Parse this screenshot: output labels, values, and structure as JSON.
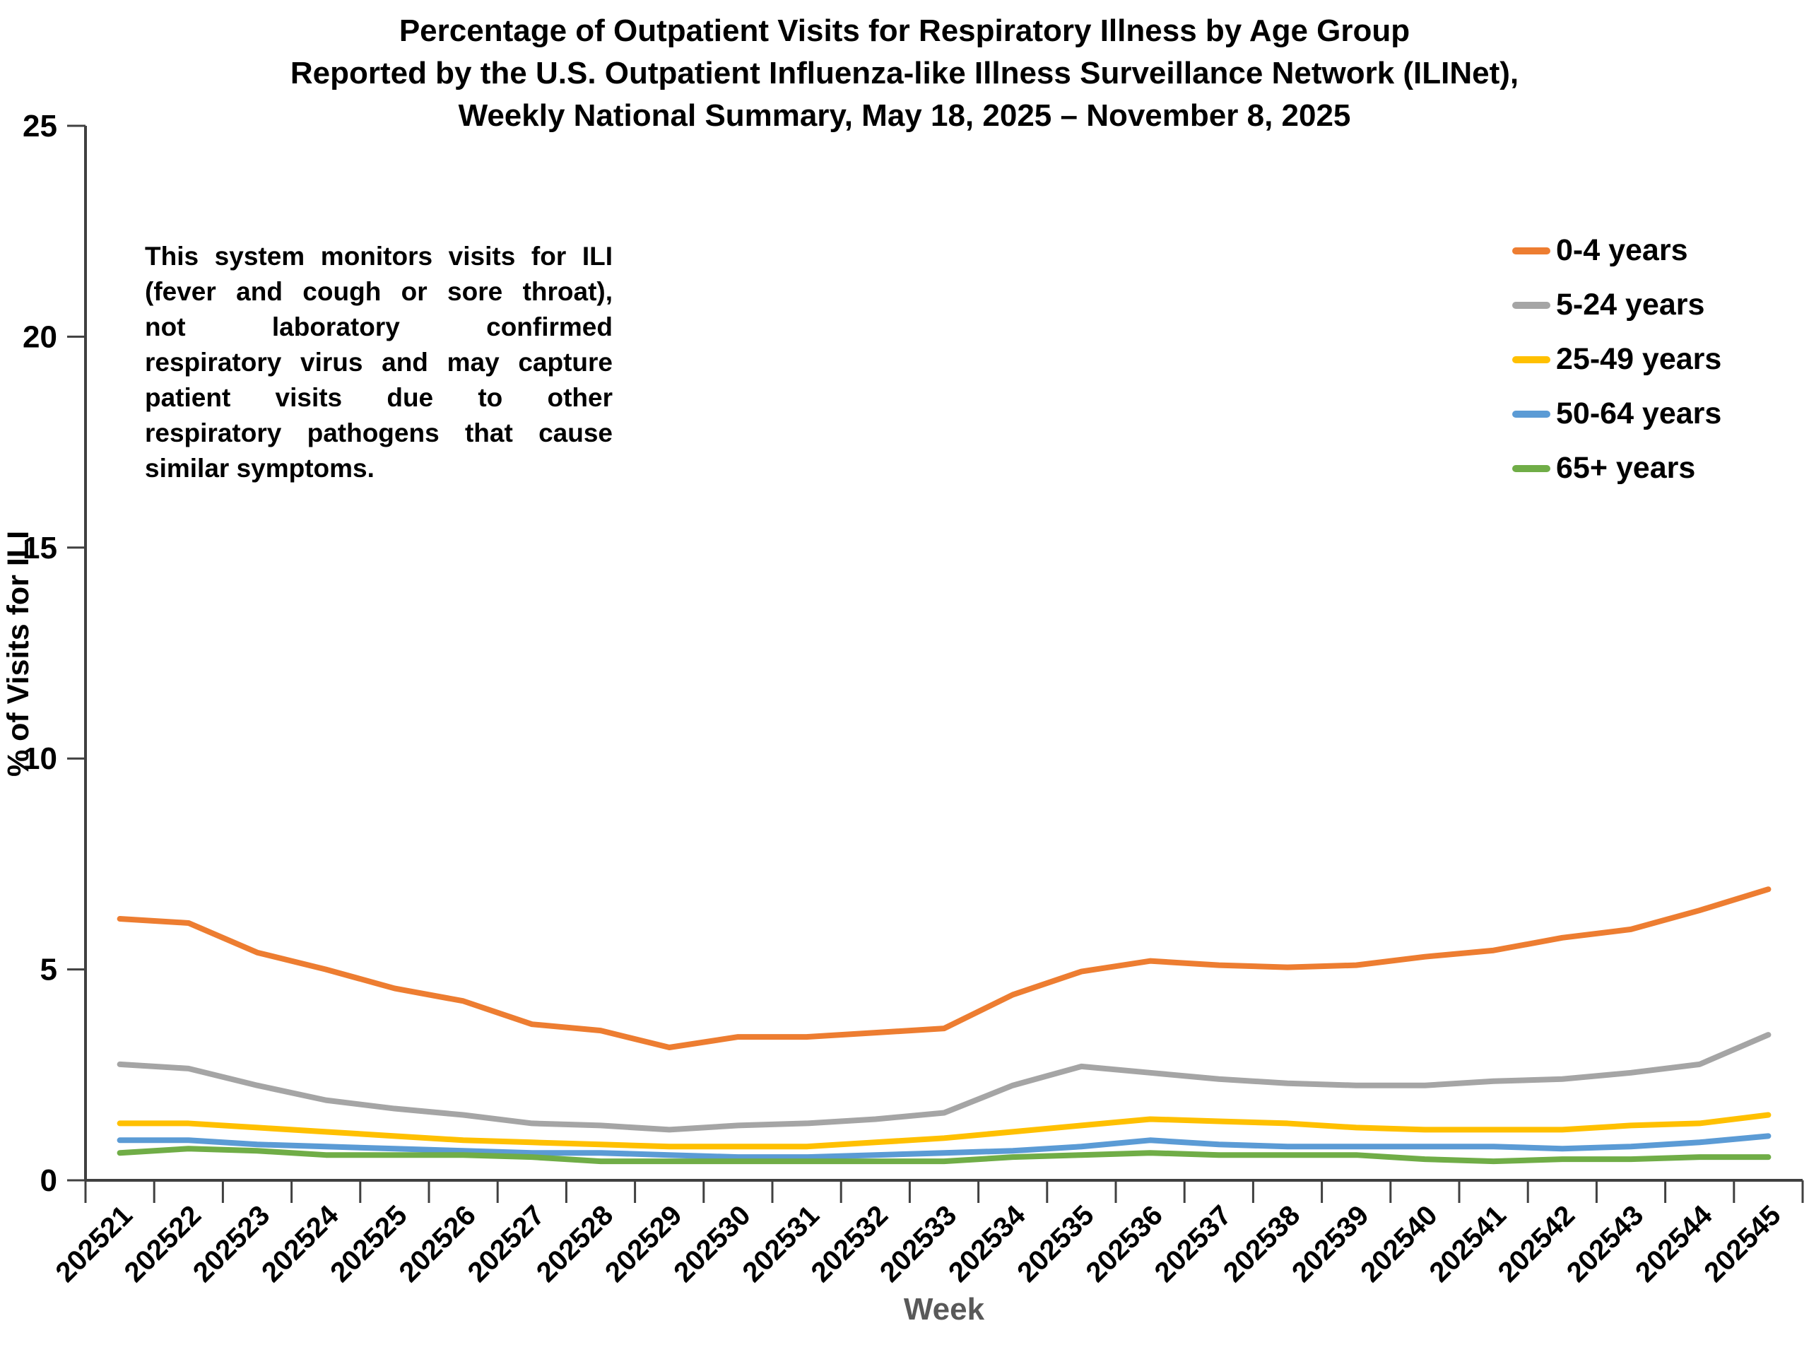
{
  "title": {
    "line1": "Percentage of Outpatient Visits for Respiratory Illness by Age Group",
    "line2": "Reported by the U.S. Outpatient Influenza-like Illness Surveillance Network (ILINet),",
    "line3": "Weekly National Summary, May 18, 2025 – November 8, 2025"
  },
  "note": {
    "lines": [
      "This system monitors visits for ILI",
      "(fever and cough or sore throat),",
      "not laboratory confirmed",
      "respiratory virus and may capture",
      "patient visits due to other",
      "respiratory pathogens that cause",
      "similar symptoms."
    ]
  },
  "y_axis": {
    "title": "% of Visits for ILI",
    "ticks": [
      "0",
      "5",
      "10",
      "15",
      "20",
      "25"
    ]
  },
  "x_axis": {
    "title": "Week"
  },
  "colors": {
    "axis": "#404040",
    "tick_label": "#000000",
    "x_title": "#595959",
    "background": "#FFFFFF"
  },
  "chart_data": {
    "type": "line",
    "title": "Percentage of Outpatient Visits for Respiratory Illness by Age Group, Reported by the U.S. Outpatient Influenza-like Illness Surveillance Network (ILINet), Weekly National Summary, May 18, 2025 – November 8, 2025",
    "xlabel": "Week",
    "ylabel": "% of Visits for ILI",
    "ylim": [
      0,
      25
    ],
    "y_tick_step": 5,
    "grid": false,
    "legend_position": "right-top",
    "categories": [
      "202521",
      "202522",
      "202523",
      "202524",
      "202525",
      "202526",
      "202527",
      "202528",
      "202529",
      "202530",
      "202531",
      "202532",
      "202533",
      "202534",
      "202535",
      "202536",
      "202537",
      "202538",
      "202539",
      "202540",
      "202541",
      "202542",
      "202543",
      "202544",
      "202545"
    ],
    "series": [
      {
        "name": "0-4 years",
        "color": "#ED7D31",
        "values": [
          6.2,
          6.1,
          5.4,
          5.0,
          4.55,
          4.25,
          3.7,
          3.55,
          3.15,
          3.4,
          3.4,
          3.5,
          3.6,
          4.4,
          4.95,
          5.2,
          5.1,
          5.05,
          5.1,
          5.3,
          5.45,
          5.75,
          5.95,
          6.4,
          6.9
        ]
      },
      {
        "name": "5-24 years",
        "color": "#A5A5A5",
        "values": [
          2.75,
          2.65,
          2.25,
          1.9,
          1.7,
          1.55,
          1.35,
          1.3,
          1.2,
          1.3,
          1.35,
          1.45,
          1.6,
          2.25,
          2.7,
          2.55,
          2.4,
          2.3,
          2.25,
          2.25,
          2.35,
          2.4,
          2.55,
          2.75,
          3.45
        ]
      },
      {
        "name": "25-49 years",
        "color": "#FFC000",
        "values": [
          1.35,
          1.35,
          1.25,
          1.15,
          1.05,
          0.95,
          0.9,
          0.85,
          0.8,
          0.8,
          0.8,
          0.9,
          1.0,
          1.15,
          1.3,
          1.45,
          1.4,
          1.35,
          1.25,
          1.2,
          1.2,
          1.2,
          1.3,
          1.35,
          1.55
        ]
      },
      {
        "name": "50-64 years",
        "color": "#5B9BD5",
        "values": [
          0.95,
          0.95,
          0.85,
          0.8,
          0.75,
          0.7,
          0.65,
          0.65,
          0.6,
          0.55,
          0.55,
          0.6,
          0.65,
          0.7,
          0.8,
          0.95,
          0.85,
          0.8,
          0.8,
          0.8,
          0.8,
          0.75,
          0.8,
          0.9,
          1.05
        ]
      },
      {
        "name": "65+ years",
        "color": "#70AD47",
        "values": [
          0.65,
          0.75,
          0.7,
          0.6,
          0.6,
          0.6,
          0.55,
          0.45,
          0.45,
          0.45,
          0.45,
          0.45,
          0.45,
          0.55,
          0.6,
          0.65,
          0.6,
          0.6,
          0.6,
          0.5,
          0.45,
          0.5,
          0.5,
          0.55,
          0.55
        ]
      }
    ]
  }
}
